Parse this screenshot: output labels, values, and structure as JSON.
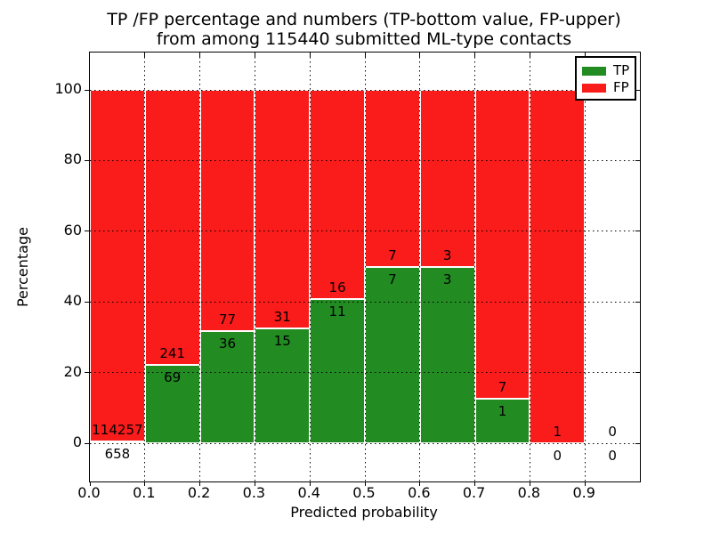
{
  "chart_data": {
    "type": "bar",
    "stacked": true,
    "title": "TP /FP percentage and numbers (TP-bottom value, FP-upper) from among 115440 submitted ML-type contacts",
    "title_lines": [
      "TP /FP percentage and numbers (TP-bottom value, FP-upper)",
      "from among 115440 submitted ML-type contacts"
    ],
    "xlabel": "Predicted probability",
    "ylabel": "Percentage",
    "xlim": [
      0.0,
      1.0
    ],
    "ylim": [
      -10.8,
      110.6
    ],
    "x_ticks": [
      "0.0",
      "0.1",
      "0.2",
      "0.3",
      "0.4",
      "0.5",
      "0.6",
      "0.7",
      "0.8",
      "0.9"
    ],
    "y_ticks": [
      "0",
      "20",
      "40",
      "60",
      "80",
      "100"
    ],
    "grid": true,
    "total_submitted": 115440,
    "colors": {
      "tp": "#228b22",
      "fp": "#fa1b1b"
    },
    "legend": {
      "position": "upper right",
      "entries": [
        {
          "label": "TP",
          "color": "#228b22"
        },
        {
          "label": "FP",
          "color": "#fa1b1b"
        }
      ]
    },
    "bins": [
      {
        "range": [
          0.0,
          0.1
        ],
        "tp": 658,
        "fp": 114257,
        "tp_pct": 0.57
      },
      {
        "range": [
          0.1,
          0.2
        ],
        "tp": 69,
        "fp": 241,
        "tp_pct": 22.26
      },
      {
        "range": [
          0.2,
          0.3
        ],
        "tp": 36,
        "fp": 77,
        "tp_pct": 31.86
      },
      {
        "range": [
          0.3,
          0.4
        ],
        "tp": 15,
        "fp": 31,
        "tp_pct": 32.61
      },
      {
        "range": [
          0.4,
          0.5
        ],
        "tp": 11,
        "fp": 16,
        "tp_pct": 40.74
      },
      {
        "range": [
          0.5,
          0.6
        ],
        "tp": 7,
        "fp": 7,
        "tp_pct": 50.0
      },
      {
        "range": [
          0.6,
          0.7
        ],
        "tp": 3,
        "fp": 3,
        "tp_pct": 50.0
      },
      {
        "range": [
          0.7,
          0.8
        ],
        "tp": 1,
        "fp": 7,
        "tp_pct": 12.5
      },
      {
        "range": [
          0.8,
          0.9
        ],
        "tp": 0,
        "fp": 1,
        "tp_pct": 0.0
      },
      {
        "range": [
          0.9,
          1.0
        ],
        "tp": 0,
        "fp": 0,
        "tp_pct": null
      }
    ]
  }
}
